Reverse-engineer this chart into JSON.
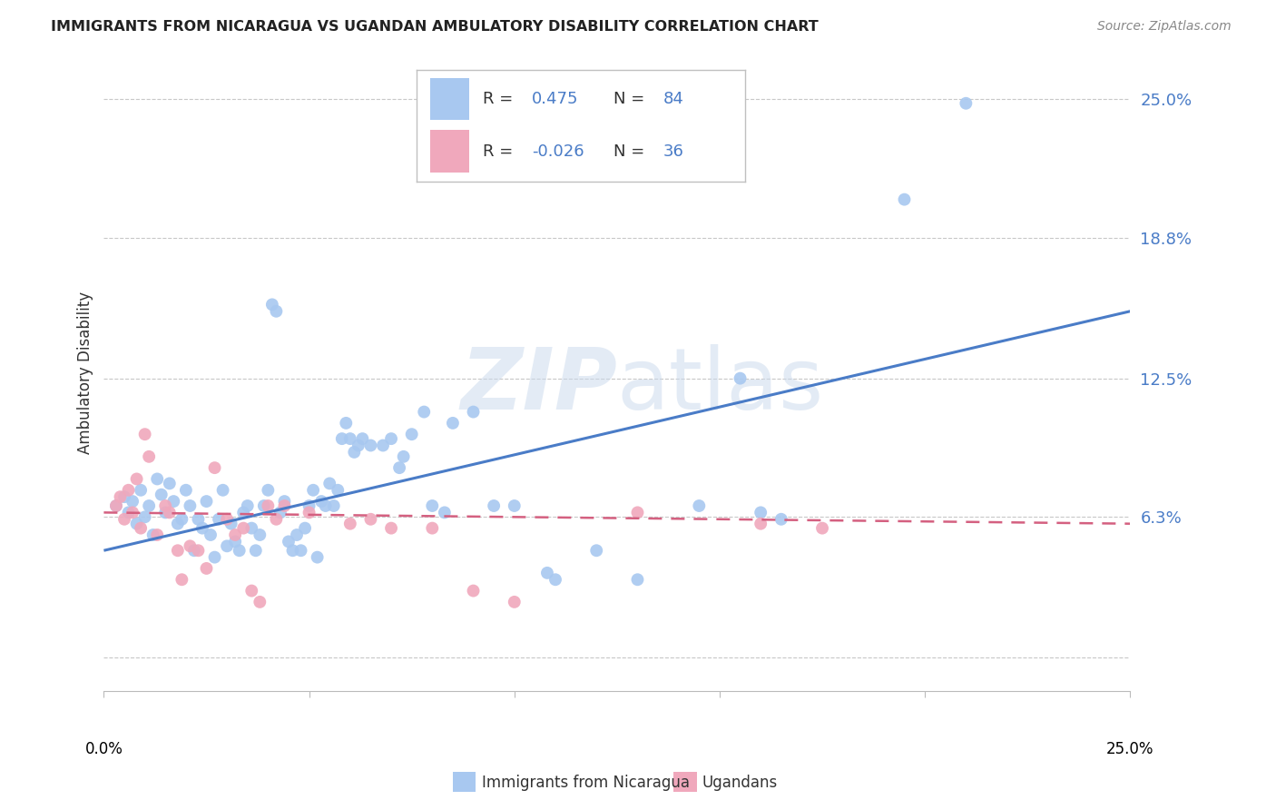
{
  "title": "IMMIGRANTS FROM NICARAGUA VS UGANDAN AMBULATORY DISABILITY CORRELATION CHART",
  "source": "Source: ZipAtlas.com",
  "ylabel": "Ambulatory Disability",
  "xlim": [
    0.0,
    0.25
  ],
  "ylim": [
    -0.015,
    0.27
  ],
  "watermark": "ZIPatlas",
  "blue_color": "#a8c8f0",
  "pink_color": "#f0a8bc",
  "blue_line_color": "#4a7cc7",
  "pink_line_color": "#d46080",
  "ytick_vals": [
    0.0,
    0.063,
    0.125,
    0.188,
    0.25
  ],
  "ytick_labels": [
    "",
    "6.3%",
    "12.5%",
    "18.8%",
    "25.0%"
  ],
  "blue_trendline_x": [
    0.0,
    0.25
  ],
  "blue_trendline_y": [
    0.048,
    0.155
  ],
  "pink_trendline_x": [
    0.0,
    0.25
  ],
  "pink_trendline_y": [
    0.065,
    0.06
  ],
  "scatter_blue": [
    [
      0.003,
      0.068
    ],
    [
      0.005,
      0.072
    ],
    [
      0.006,
      0.065
    ],
    [
      0.007,
      0.07
    ],
    [
      0.008,
      0.06
    ],
    [
      0.009,
      0.075
    ],
    [
      0.01,
      0.063
    ],
    [
      0.011,
      0.068
    ],
    [
      0.012,
      0.055
    ],
    [
      0.013,
      0.08
    ],
    [
      0.014,
      0.073
    ],
    [
      0.015,
      0.065
    ],
    [
      0.016,
      0.078
    ],
    [
      0.017,
      0.07
    ],
    [
      0.018,
      0.06
    ],
    [
      0.019,
      0.062
    ],
    [
      0.02,
      0.075
    ],
    [
      0.021,
      0.068
    ],
    [
      0.022,
      0.048
    ],
    [
      0.023,
      0.062
    ],
    [
      0.024,
      0.058
    ],
    [
      0.025,
      0.07
    ],
    [
      0.026,
      0.055
    ],
    [
      0.027,
      0.045
    ],
    [
      0.028,
      0.062
    ],
    [
      0.029,
      0.075
    ],
    [
      0.03,
      0.05
    ],
    [
      0.031,
      0.06
    ],
    [
      0.032,
      0.052
    ],
    [
      0.033,
      0.048
    ],
    [
      0.034,
      0.065
    ],
    [
      0.035,
      0.068
    ],
    [
      0.036,
      0.058
    ],
    [
      0.037,
      0.048
    ],
    [
      0.038,
      0.055
    ],
    [
      0.039,
      0.068
    ],
    [
      0.04,
      0.075
    ],
    [
      0.041,
      0.158
    ],
    [
      0.042,
      0.155
    ],
    [
      0.043,
      0.065
    ],
    [
      0.044,
      0.07
    ],
    [
      0.045,
      0.052
    ],
    [
      0.046,
      0.048
    ],
    [
      0.047,
      0.055
    ],
    [
      0.048,
      0.048
    ],
    [
      0.049,
      0.058
    ],
    [
      0.05,
      0.068
    ],
    [
      0.051,
      0.075
    ],
    [
      0.052,
      0.045
    ],
    [
      0.053,
      0.07
    ],
    [
      0.054,
      0.068
    ],
    [
      0.055,
      0.078
    ],
    [
      0.056,
      0.068
    ],
    [
      0.057,
      0.075
    ],
    [
      0.058,
      0.098
    ],
    [
      0.059,
      0.105
    ],
    [
      0.06,
      0.098
    ],
    [
      0.061,
      0.092
    ],
    [
      0.062,
      0.095
    ],
    [
      0.063,
      0.098
    ],
    [
      0.065,
      0.095
    ],
    [
      0.068,
      0.095
    ],
    [
      0.07,
      0.098
    ],
    [
      0.072,
      0.085
    ],
    [
      0.073,
      0.09
    ],
    [
      0.075,
      0.1
    ],
    [
      0.078,
      0.11
    ],
    [
      0.08,
      0.068
    ],
    [
      0.083,
      0.065
    ],
    [
      0.085,
      0.105
    ],
    [
      0.09,
      0.11
    ],
    [
      0.095,
      0.068
    ],
    [
      0.1,
      0.068
    ],
    [
      0.108,
      0.038
    ],
    [
      0.11,
      0.035
    ],
    [
      0.12,
      0.048
    ],
    [
      0.13,
      0.035
    ],
    [
      0.145,
      0.068
    ],
    [
      0.155,
      0.125
    ],
    [
      0.16,
      0.065
    ],
    [
      0.165,
      0.062
    ],
    [
      0.195,
      0.205
    ],
    [
      0.21,
      0.248
    ]
  ],
  "scatter_pink": [
    [
      0.003,
      0.068
    ],
    [
      0.004,
      0.072
    ],
    [
      0.005,
      0.062
    ],
    [
      0.006,
      0.075
    ],
    [
      0.007,
      0.065
    ],
    [
      0.008,
      0.08
    ],
    [
      0.009,
      0.058
    ],
    [
      0.01,
      0.1
    ],
    [
      0.011,
      0.09
    ],
    [
      0.013,
      0.055
    ],
    [
      0.015,
      0.068
    ],
    [
      0.016,
      0.065
    ],
    [
      0.018,
      0.048
    ],
    [
      0.019,
      0.035
    ],
    [
      0.021,
      0.05
    ],
    [
      0.023,
      0.048
    ],
    [
      0.025,
      0.04
    ],
    [
      0.027,
      0.085
    ],
    [
      0.03,
      0.062
    ],
    [
      0.032,
      0.055
    ],
    [
      0.034,
      0.058
    ],
    [
      0.036,
      0.03
    ],
    [
      0.038,
      0.025
    ],
    [
      0.04,
      0.068
    ],
    [
      0.042,
      0.062
    ],
    [
      0.044,
      0.068
    ],
    [
      0.05,
      0.065
    ],
    [
      0.06,
      0.06
    ],
    [
      0.065,
      0.062
    ],
    [
      0.07,
      0.058
    ],
    [
      0.08,
      0.058
    ],
    [
      0.09,
      0.03
    ],
    [
      0.1,
      0.025
    ],
    [
      0.13,
      0.065
    ],
    [
      0.16,
      0.06
    ],
    [
      0.175,
      0.058
    ]
  ]
}
